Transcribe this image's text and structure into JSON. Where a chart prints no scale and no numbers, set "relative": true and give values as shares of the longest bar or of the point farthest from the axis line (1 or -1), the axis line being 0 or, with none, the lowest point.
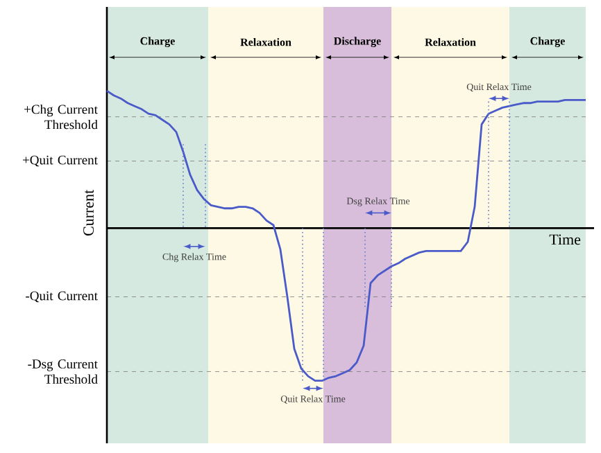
{
  "chart_data": {
    "type": "line",
    "relative": true,
    "xlabel": "Time",
    "ylabel": "Current",
    "color": "#4a5ac8",
    "line_style": "solid",
    "categories": [
      null,
      null,
      null,
      null,
      null,
      null,
      null,
      null,
      null,
      null,
      null,
      null,
      null,
      null,
      null,
      null,
      null,
      null,
      null,
      null,
      null,
      null,
      null,
      null,
      null,
      null,
      null,
      null,
      null,
      null,
      null,
      null,
      null,
      null,
      null,
      null,
      null,
      null,
      null,
      null,
      null,
      null,
      null,
      null,
      null,
      null,
      null,
      null,
      null,
      null,
      null,
      null,
      null,
      null,
      null,
      null,
      null,
      null,
      null,
      null,
      null,
      null,
      null,
      null,
      null,
      null,
      null,
      null,
      null,
      null
    ],
    "values": [
      0.9,
      0.87,
      0.85,
      0.82,
      0.8,
      0.78,
      0.75,
      0.74,
      0.71,
      0.68,
      0.63,
      0.5,
      0.35,
      0.25,
      0.19,
      0.15,
      0.14,
      0.13,
      0.13,
      0.14,
      0.14,
      0.13,
      0.1,
      0.05,
      0.02,
      -0.14,
      -0.45,
      -0.79,
      -0.92,
      -0.97,
      -1,
      -1,
      -0.98,
      -0.97,
      -0.95,
      -0.93,
      -0.88,
      -0.77,
      -0.36,
      -0.31,
      -0.28,
      -0.25,
      -0.23,
      -0.2,
      -0.18,
      -0.16,
      -0.15,
      -0.15,
      -0.15,
      -0.15,
      -0.15,
      -0.15,
      -0.09,
      0.14,
      0.68,
      0.75,
      0.77,
      0.79,
      0.8,
      0.81,
      0.82,
      0.82,
      0.83,
      0.83,
      0.83,
      0.83,
      0.84,
      0.84,
      0.84,
      0.84
    ],
    "ref_lines": [
      {
        "axis": "y",
        "value": 0.73,
        "label": "+Chg Current Threshold",
        "color": "#777777",
        "line_style": "dashed"
      },
      {
        "axis": "y",
        "value": 0.44,
        "label": "+Quit Current",
        "color": "#777777",
        "line_style": "dashed"
      },
      {
        "axis": "y",
        "value": -0.45,
        "label": "-Quit Current",
        "color": "#777777",
        "line_style": "dashed"
      },
      {
        "axis": "y",
        "value": -0.94,
        "label": "-Dsg Current Threshold",
        "color": "#777777",
        "line_style": "dashed"
      }
    ],
    "annotations": [
      "Charge",
      "Relaxation",
      "Discharge",
      "Relaxation",
      "Charge",
      "Chg Relax Time",
      "Quit Relax Time",
      "Dsg Relax Time",
      "Quit Relax Time"
    ]
  }
}
